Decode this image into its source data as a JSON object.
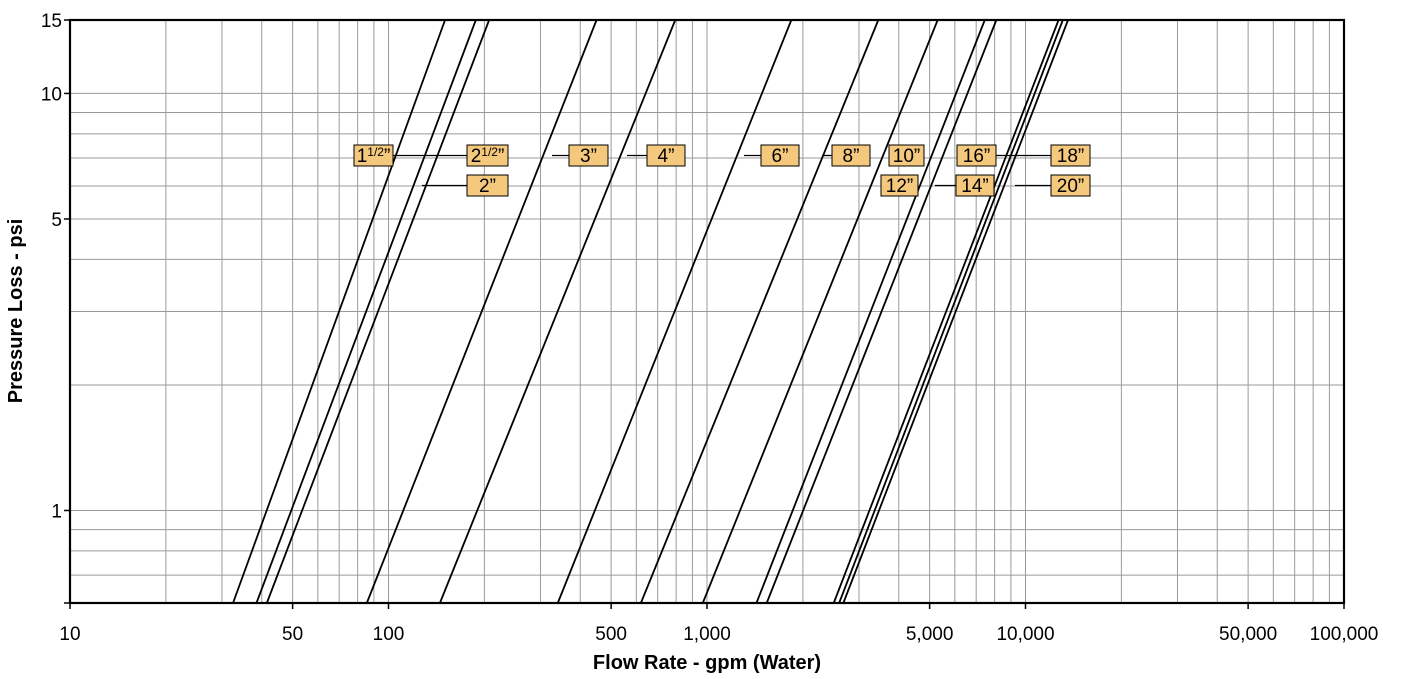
{
  "chart_data": {
    "type": "line",
    "title": "",
    "xlabel": "Flow Rate - gpm (Water)",
    "ylabel": "Pressure Loss - psi",
    "x_scale": "log",
    "y_scale": "log",
    "xlim": [
      10,
      100000
    ],
    "ylim": [
      0.6,
      15
    ],
    "x_tick_labels": [
      {
        "value": 10,
        "label": "10"
      },
      {
        "value": 50,
        "label": "50"
      },
      {
        "value": 100,
        "label": "100"
      },
      {
        "value": 500,
        "label": "500"
      },
      {
        "value": 1000,
        "label": "1,000"
      },
      {
        "value": 5000,
        "label": "5,000"
      },
      {
        "value": 10000,
        "label": "10,000"
      },
      {
        "value": 50000,
        "label": "50,000"
      },
      {
        "value": 100000,
        "label": "100,000"
      }
    ],
    "y_tick_labels": [
      {
        "value": 1,
        "label": "1"
      },
      {
        "value": 5,
        "label": "5"
      },
      {
        "value": 10,
        "label": "10"
      },
      {
        "value": 15,
        "label": "15"
      }
    ],
    "grid": true,
    "label_color": "#F5C97D",
    "series": [
      {
        "name": "1½\"",
        "label_whole": "1",
        "label_frac": "1/2",
        "label_suffix": "”",
        "x": [
          32.5,
          150.5
        ],
        "y": [
          0.6,
          15
        ]
      },
      {
        "name": "2\"",
        "label_whole": "2",
        "label_frac": "",
        "label_suffix": "”",
        "x": [
          41.5,
          207
        ],
        "y": [
          0.6,
          15
        ]
      },
      {
        "name": "2½\"",
        "label_whole": "2",
        "label_frac": "1/2",
        "label_suffix": "”",
        "x": [
          38.5,
          188
        ],
        "y": [
          0.6,
          15
        ]
      },
      {
        "name": "3\"",
        "label_whole": "3",
        "label_frac": "",
        "label_suffix": "”",
        "x": [
          85.5,
          450
        ],
        "y": [
          0.6,
          15
        ]
      },
      {
        "name": "4\"",
        "label_whole": "4",
        "label_frac": "",
        "label_suffix": "”",
        "x": [
          145,
          795
        ],
        "y": [
          0.6,
          15
        ]
      },
      {
        "name": "6\"",
        "label_whole": "6",
        "label_frac": "",
        "label_suffix": "”",
        "x": [
          340,
          1840
        ],
        "y": [
          0.6,
          15
        ]
      },
      {
        "name": "8\"",
        "label_whole": "8",
        "label_frac": "",
        "label_suffix": "”",
        "x": [
          620,
          3450
        ],
        "y": [
          0.6,
          15
        ]
      },
      {
        "name": "10\"",
        "label_whole": "10",
        "label_frac": "",
        "label_suffix": "”",
        "x": [
          970,
          5300
        ],
        "y": [
          0.6,
          15
        ]
      },
      {
        "name": "12\"",
        "label_whole": "12",
        "label_frac": "",
        "label_suffix": "”",
        "x": [
          1430,
          7450
        ],
        "y": [
          0.6,
          15
        ]
      },
      {
        "name": "14\"",
        "label_whole": "14",
        "label_frac": "",
        "label_suffix": "”",
        "x": [
          1540,
          8100
        ],
        "y": [
          0.6,
          15
        ]
      },
      {
        "name": "16\"",
        "label_whole": "16",
        "label_frac": "",
        "label_suffix": "”",
        "x": [
          2600,
          13100
        ],
        "y": [
          0.6,
          15
        ]
      },
      {
        "name": "18\"",
        "label_whole": "18",
        "label_frac": "",
        "label_suffix": "”",
        "x": [
          2500,
          12700
        ],
        "y": [
          0.6,
          15
        ]
      },
      {
        "name": "20\"",
        "label_whole": "20",
        "label_frac": "",
        "label_suffix": "”",
        "x": [
          2680,
          13600
        ],
        "y": [
          0.6,
          15
        ]
      }
    ]
  }
}
